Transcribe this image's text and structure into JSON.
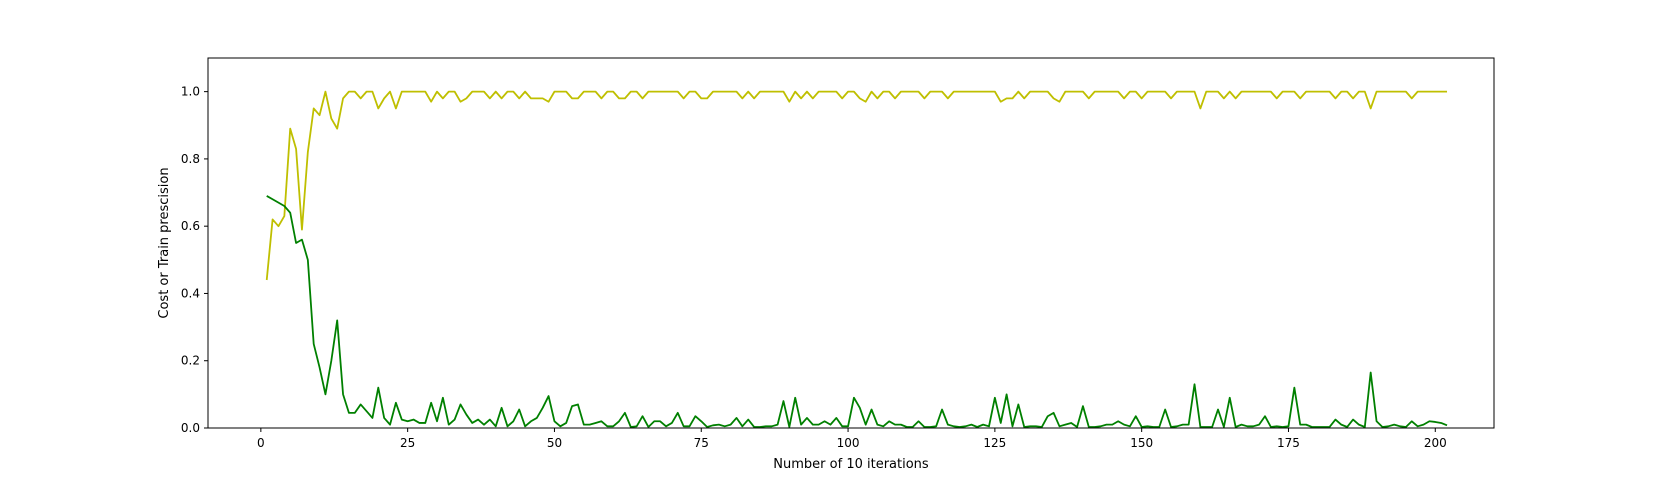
{
  "chart_data": {
    "type": "line",
    "title": "",
    "xlabel": "Number of 10 iterations",
    "ylabel": "Cost or Train prescision",
    "xlim": [
      -9,
      210
    ],
    "ylim": [
      0,
      1.1
    ],
    "xticks": [
      0,
      25,
      50,
      75,
      100,
      125,
      150,
      175,
      200
    ],
    "yticks": [
      0.0,
      0.2,
      0.4,
      0.6,
      0.8,
      1.0
    ],
    "xtick_labels": [
      "0",
      "25",
      "50",
      "75",
      "100",
      "125",
      "150",
      "175",
      "200"
    ],
    "ytick_labels": [
      "0.0",
      "0.2",
      "0.4",
      "0.6",
      "0.8",
      "1.0"
    ],
    "grid": false,
    "legend": "none",
    "series": [
      {
        "color": "#bfbf00",
        "x_start": 1,
        "values": [
          0.44,
          0.62,
          0.6,
          0.63,
          0.89,
          0.83,
          0.59,
          0.82,
          0.95,
          0.93,
          1.0,
          0.92,
          0.89,
          0.98,
          1.0,
          1.0,
          0.98,
          1.0,
          1.0,
          0.95,
          0.98,
          1.0,
          0.95,
          1.0,
          1.0,
          1.0,
          1.0,
          1.0,
          0.97,
          1.0,
          0.98,
          1.0,
          1.0,
          0.97,
          0.98,
          1.0,
          1.0,
          1.0,
          0.98,
          1.0,
          0.98,
          1.0,
          1.0,
          0.98,
          1.0,
          0.98,
          0.98,
          0.98,
          0.97,
          1.0,
          1.0,
          1.0,
          0.98,
          0.98,
          1.0,
          1.0,
          1.0,
          0.98,
          1.0,
          1.0,
          0.98,
          0.98,
          1.0,
          1.0,
          0.98,
          1.0,
          1.0,
          1.0,
          1.0,
          1.0,
          1.0,
          0.98,
          1.0,
          1.0,
          0.98,
          0.98,
          1.0,
          1.0,
          1.0,
          1.0,
          1.0,
          0.98,
          1.0,
          0.98,
          1.0,
          1.0,
          1.0,
          1.0,
          1.0,
          0.97,
          1.0,
          0.98,
          1.0,
          0.98,
          1.0,
          1.0,
          1.0,
          1.0,
          0.98,
          1.0,
          1.0,
          0.98,
          0.97,
          1.0,
          0.98,
          1.0,
          1.0,
          0.98,
          1.0,
          1.0,
          1.0,
          1.0,
          0.98,
          1.0,
          1.0,
          1.0,
          0.98,
          1.0,
          1.0,
          1.0,
          1.0,
          1.0,
          1.0,
          1.0,
          1.0,
          0.97,
          0.98,
          0.98,
          1.0,
          0.98,
          1.0,
          1.0,
          1.0,
          1.0,
          0.98,
          0.97,
          1.0,
          1.0,
          1.0,
          1.0,
          0.98,
          1.0,
          1.0,
          1.0,
          1.0,
          1.0,
          0.98,
          1.0,
          1.0,
          0.98,
          1.0,
          1.0,
          1.0,
          1.0,
          0.98,
          1.0,
          1.0,
          1.0,
          1.0,
          0.95,
          1.0,
          1.0,
          1.0,
          0.98,
          1.0,
          0.98,
          1.0,
          1.0,
          1.0,
          1.0,
          1.0,
          1.0,
          0.98,
          1.0,
          1.0,
          1.0,
          0.98,
          1.0,
          1.0,
          1.0,
          1.0,
          1.0,
          0.98,
          1.0,
          1.0,
          0.98,
          1.0,
          1.0,
          0.95,
          1.0,
          1.0,
          1.0,
          1.0,
          1.0,
          1.0,
          0.98,
          1.0,
          1.0,
          1.0,
          1.0,
          1.0,
          1.0
        ]
      },
      {
        "color": "#008000",
        "x_start": 1,
        "values": [
          0.69,
          0.68,
          0.67,
          0.66,
          0.64,
          0.55,
          0.56,
          0.5,
          0.25,
          0.18,
          0.1,
          0.2,
          0.32,
          0.1,
          0.045,
          0.045,
          0.07,
          0.05,
          0.03,
          0.12,
          0.03,
          0.01,
          0.075,
          0.025,
          0.02,
          0.025,
          0.015,
          0.015,
          0.075,
          0.02,
          0.09,
          0.01,
          0.025,
          0.07,
          0.04,
          0.015,
          0.025,
          0.01,
          0.025,
          0.005,
          0.06,
          0.005,
          0.02,
          0.055,
          0.005,
          0.02,
          0.03,
          0.06,
          0.095,
          0.02,
          0.005,
          0.015,
          0.065,
          0.07,
          0.01,
          0.01,
          0.015,
          0.02,
          0.005,
          0.005,
          0.02,
          0.045,
          0.003,
          0.005,
          0.035,
          0.003,
          0.02,
          0.02,
          0.005,
          0.015,
          0.045,
          0.005,
          0.005,
          0.035,
          0.02,
          0.003,
          0.008,
          0.01,
          0.005,
          0.01,
          0.03,
          0.005,
          0.025,
          0.003,
          0.003,
          0.005,
          0.005,
          0.01,
          0.08,
          0.003,
          0.09,
          0.01,
          0.03,
          0.01,
          0.01,
          0.02,
          0.01,
          0.03,
          0.005,
          0.005,
          0.09,
          0.06,
          0.01,
          0.055,
          0.01,
          0.005,
          0.02,
          0.01,
          0.01,
          0.003,
          0.003,
          0.02,
          0.003,
          0.003,
          0.005,
          0.055,
          0.01,
          0.005,
          0.003,
          0.005,
          0.01,
          0.003,
          0.01,
          0.005,
          0.09,
          0.015,
          0.1,
          0.005,
          0.07,
          0.003,
          0.005,
          0.005,
          0.003,
          0.035,
          0.045,
          0.005,
          0.01,
          0.015,
          0.003,
          0.065,
          0.003,
          0.003,
          0.005,
          0.01,
          0.01,
          0.02,
          0.01,
          0.005,
          0.035,
          0.003,
          0.005,
          0.003,
          0.003,
          0.055,
          0.003,
          0.005,
          0.01,
          0.01,
          0.13,
          0.003,
          0.003,
          0.003,
          0.055,
          0.003,
          0.09,
          0.003,
          0.01,
          0.005,
          0.005,
          0.01,
          0.035,
          0.003,
          0.005,
          0.003,
          0.005,
          0.12,
          0.01,
          0.01,
          0.003,
          0.003,
          0.003,
          0.003,
          0.025,
          0.01,
          0.003,
          0.025,
          0.01,
          0.003,
          0.165,
          0.02,
          0.003,
          0.005,
          0.01,
          0.005,
          0.003,
          0.02,
          0.005,
          0.01,
          0.02,
          0.018,
          0.015,
          0.008
        ]
      }
    ]
  }
}
